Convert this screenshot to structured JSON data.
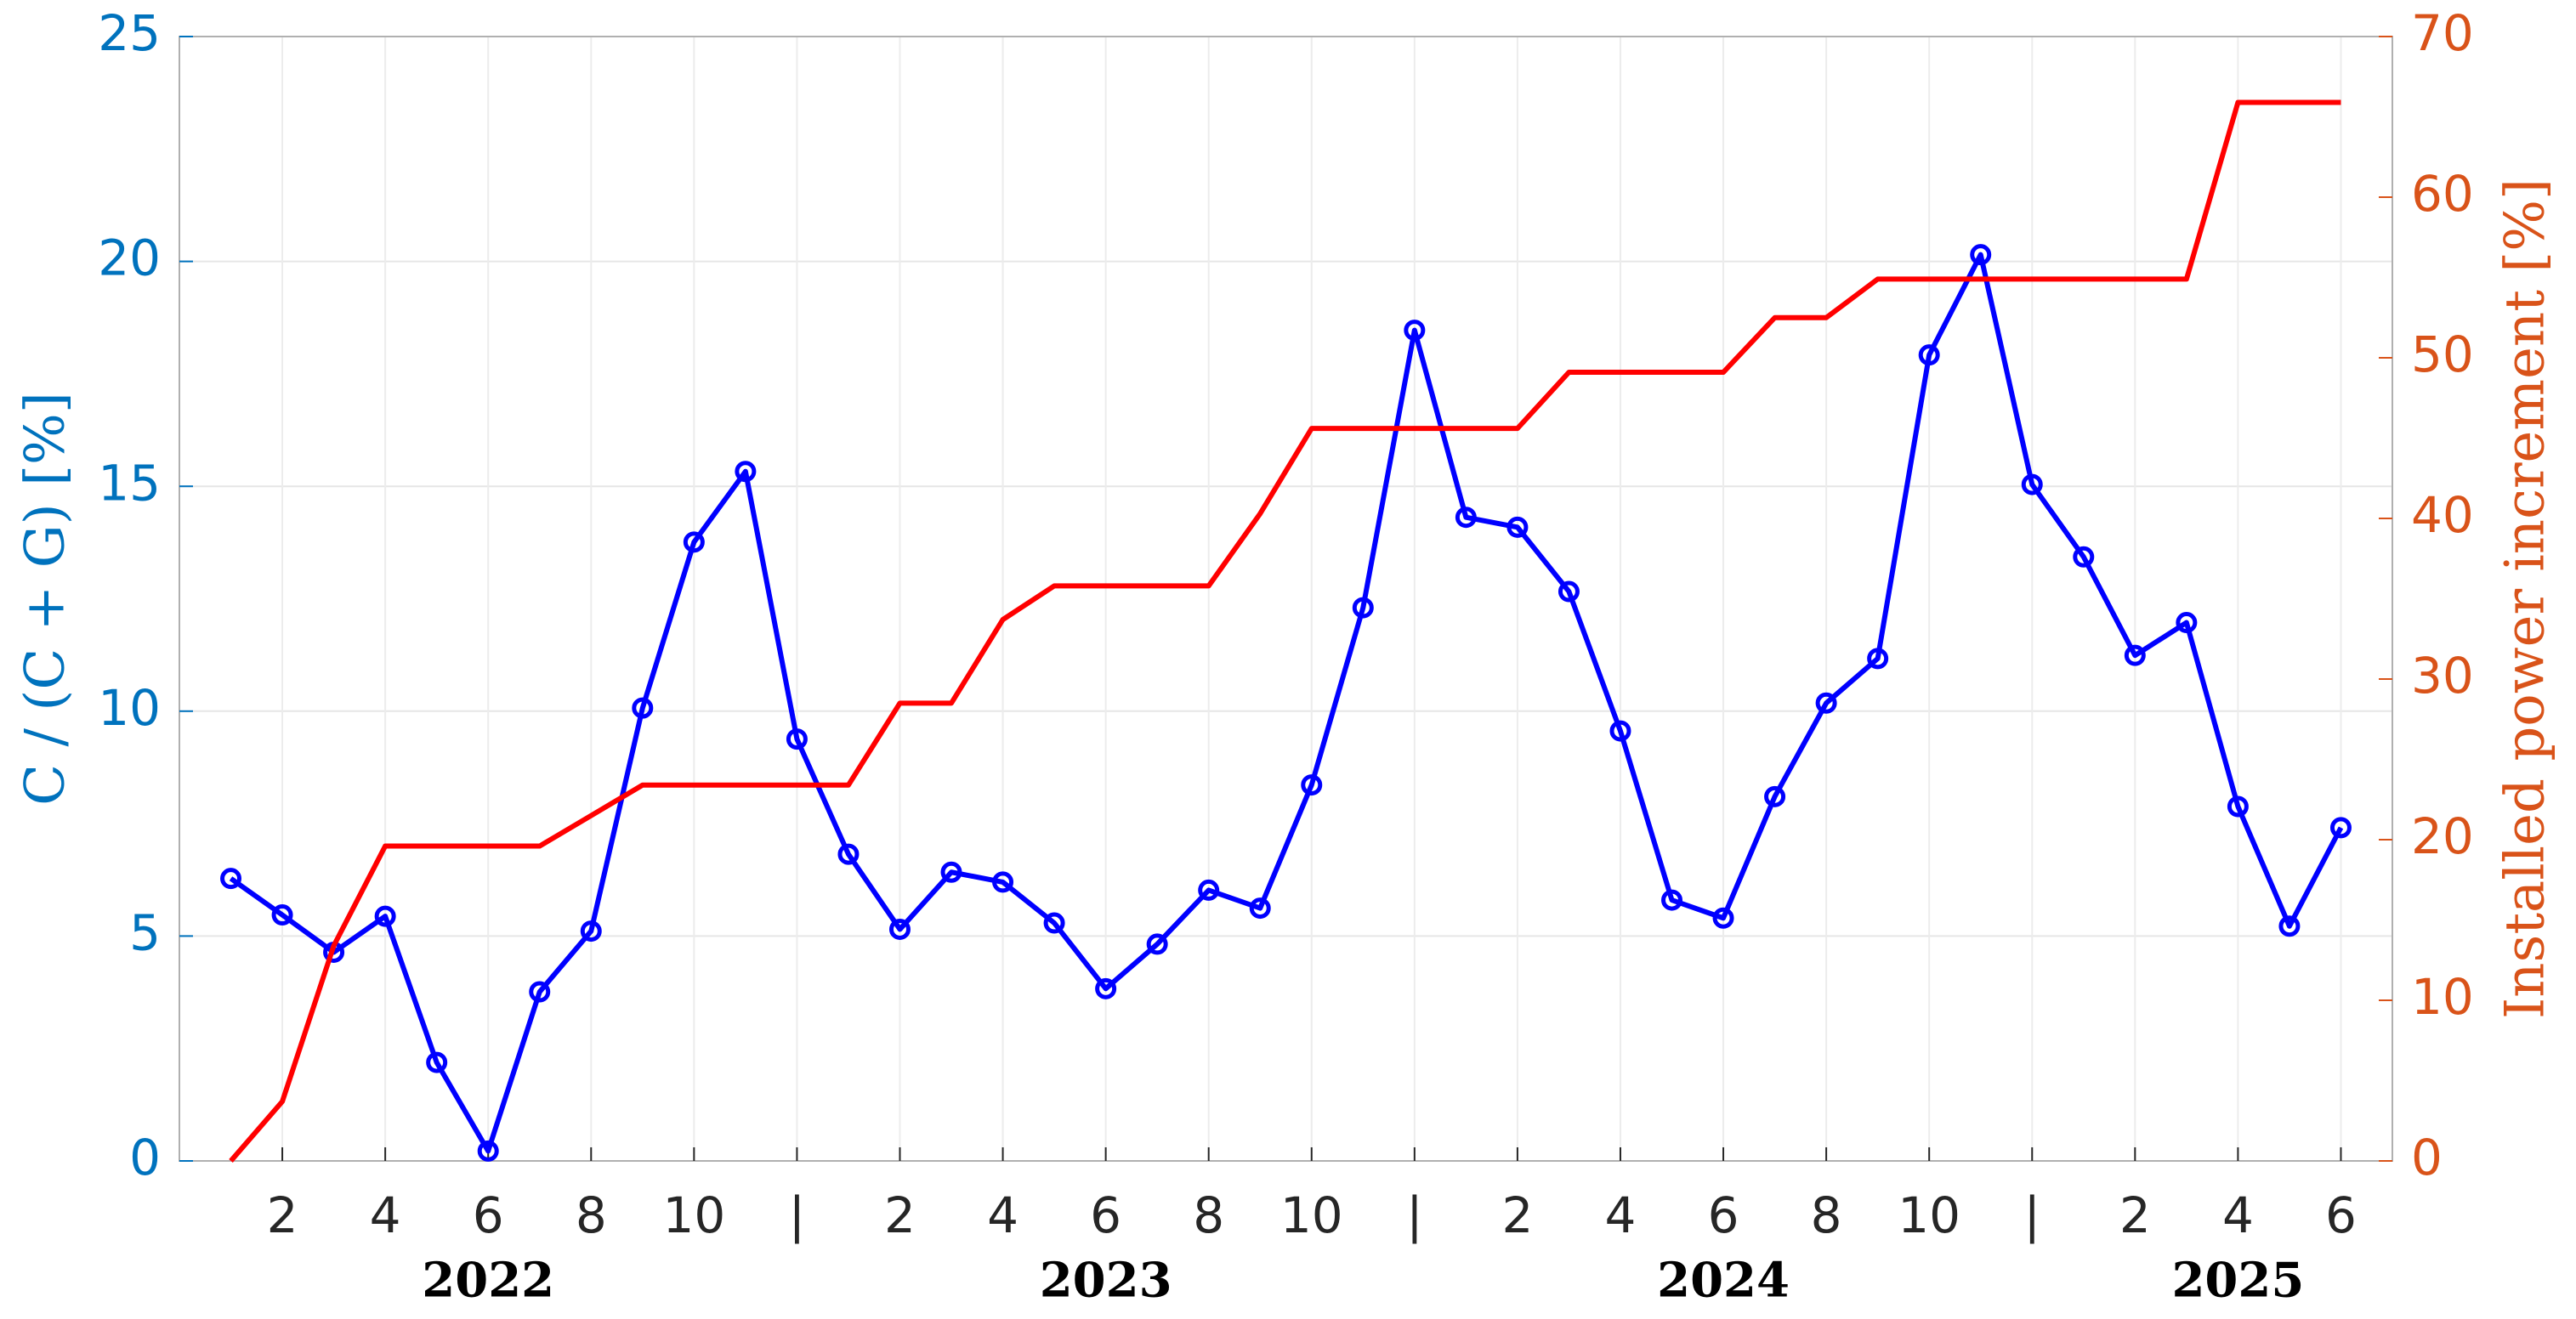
{
  "chart_data": {
    "type": "line",
    "ylabel": "C / (C + G) [%]",
    "y2label": "Installed power increment [%]",
    "x": [
      1,
      2,
      3,
      4,
      5,
      6,
      7,
      8,
      9,
      10,
      11,
      12,
      13,
      14,
      15,
      16,
      17,
      18,
      19,
      20,
      21,
      22,
      23,
      24,
      25,
      26,
      27,
      28,
      29,
      30,
      31,
      32,
      33,
      34,
      35,
      36,
      37,
      38,
      39,
      40,
      41,
      42
    ],
    "xlim": [
      0,
      43
    ],
    "xticks": [
      2,
      4,
      6,
      8,
      10,
      {
        "value": 12,
        "label": "|"
      },
      {
        "value": 14,
        "label": "2"
      },
      {
        "value": 16,
        "label": "4"
      },
      {
        "value": 18,
        "label": "6"
      },
      {
        "value": 20,
        "label": "8"
      },
      {
        "value": 22,
        "label": "10"
      },
      {
        "value": 24,
        "label": "|"
      },
      {
        "value": 26,
        "label": "2"
      },
      {
        "value": 28,
        "label": "4"
      },
      {
        "value": 30,
        "label": "6"
      },
      {
        "value": 32,
        "label": "8"
      },
      {
        "value": 34,
        "label": "10"
      },
      {
        "value": 36,
        "label": "|"
      },
      {
        "value": 38,
        "label": "2"
      },
      {
        "value": 40,
        "label": "4"
      },
      {
        "value": 42,
        "label": "6"
      }
    ],
    "year_labels": [
      {
        "value": 6,
        "label": "2022"
      },
      {
        "value": 18,
        "label": "2023"
      },
      {
        "value": 30,
        "label": "2024"
      },
      {
        "value": 40,
        "label": "2025"
      }
    ],
    "ylim": [
      0,
      25
    ],
    "yticks": [
      0,
      5,
      10,
      15,
      20,
      25
    ],
    "y2lim": [
      0,
      70
    ],
    "y2ticks": [
      0,
      10,
      20,
      30,
      40,
      50,
      60,
      70
    ],
    "grid": true,
    "series": [
      {
        "color": "#0000ff",
        "axis": "y",
        "markers": true,
        "values": [
          6.28,
          5.47,
          4.64,
          5.44,
          2.19,
          0.22,
          3.76,
          5.11,
          10.07,
          13.76,
          15.33,
          9.38,
          6.82,
          5.15,
          6.42,
          6.2,
          5.29,
          3.83,
          4.82,
          6.02,
          5.62,
          8.36,
          12.3,
          18.47,
          14.31,
          14.09,
          12.66,
          9.56,
          5.8,
          5.4,
          8.1,
          10.18,
          11.17,
          17.92,
          20.15,
          15.04,
          13.43,
          11.24,
          11.97,
          7.88,
          5.22,
          7.41
        ]
      },
      {
        "color": "#ff0000",
        "axis": "y2",
        "markers": false,
        "values": [
          0,
          3.7,
          13.4,
          19.6,
          19.6,
          19.6,
          19.6,
          21.5,
          23.4,
          23.4,
          23.4,
          23.4,
          23.4,
          28.5,
          28.5,
          33.7,
          35.8,
          35.8,
          35.8,
          35.8,
          40.3,
          45.6,
          45.6,
          45.6,
          45.6,
          45.6,
          49.1,
          49.1,
          49.1,
          49.1,
          52.5,
          52.5,
          54.9,
          54.9,
          54.9,
          54.9,
          54.9,
          54.9,
          54.9,
          65.9,
          65.9,
          65.9
        ]
      }
    ],
    "ycolor": "#0072bd",
    "y2color": "#d95319"
  }
}
